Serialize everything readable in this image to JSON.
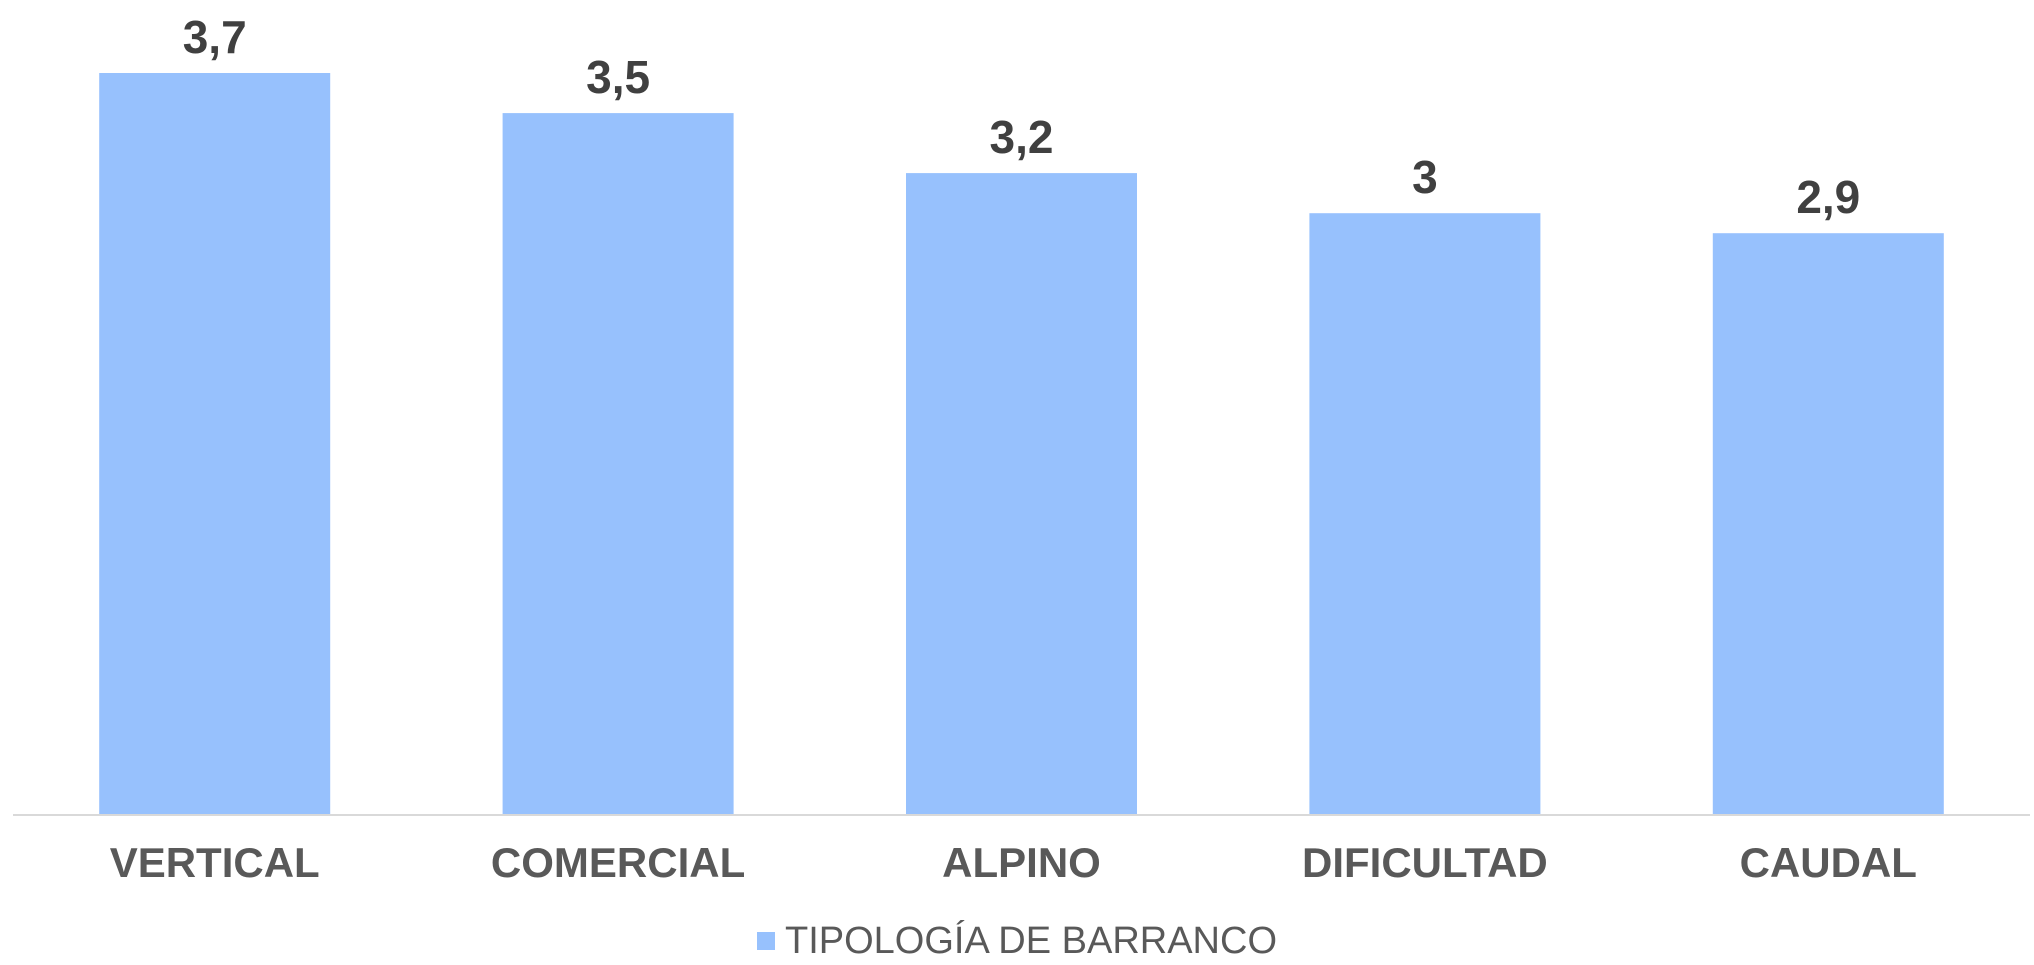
{
  "chart_data": {
    "type": "bar",
    "title": "",
    "xlabel": "",
    "ylabel": "",
    "categories": [
      "VERTICAL",
      "COMERCIAL",
      "ALPINO",
      "DIFICULTAD",
      "CAUDAL"
    ],
    "series": [
      {
        "name": "TIPOLOGÍA DE BARRANCO",
        "values": [
          3.7,
          3.5,
          3.2,
          3,
          2.9
        ],
        "data_labels": [
          "3,7",
          "3,5",
          "3,2",
          "3",
          "2,9"
        ]
      }
    ],
    "ylim": [
      0,
      3.7
    ],
    "grid": false,
    "legend_position": "bottom",
    "colors": {
      "bar": "#97C1FD",
      "data_label": "#404040",
      "category_label": "#595959",
      "axis_line": "#D9D9D9"
    }
  }
}
